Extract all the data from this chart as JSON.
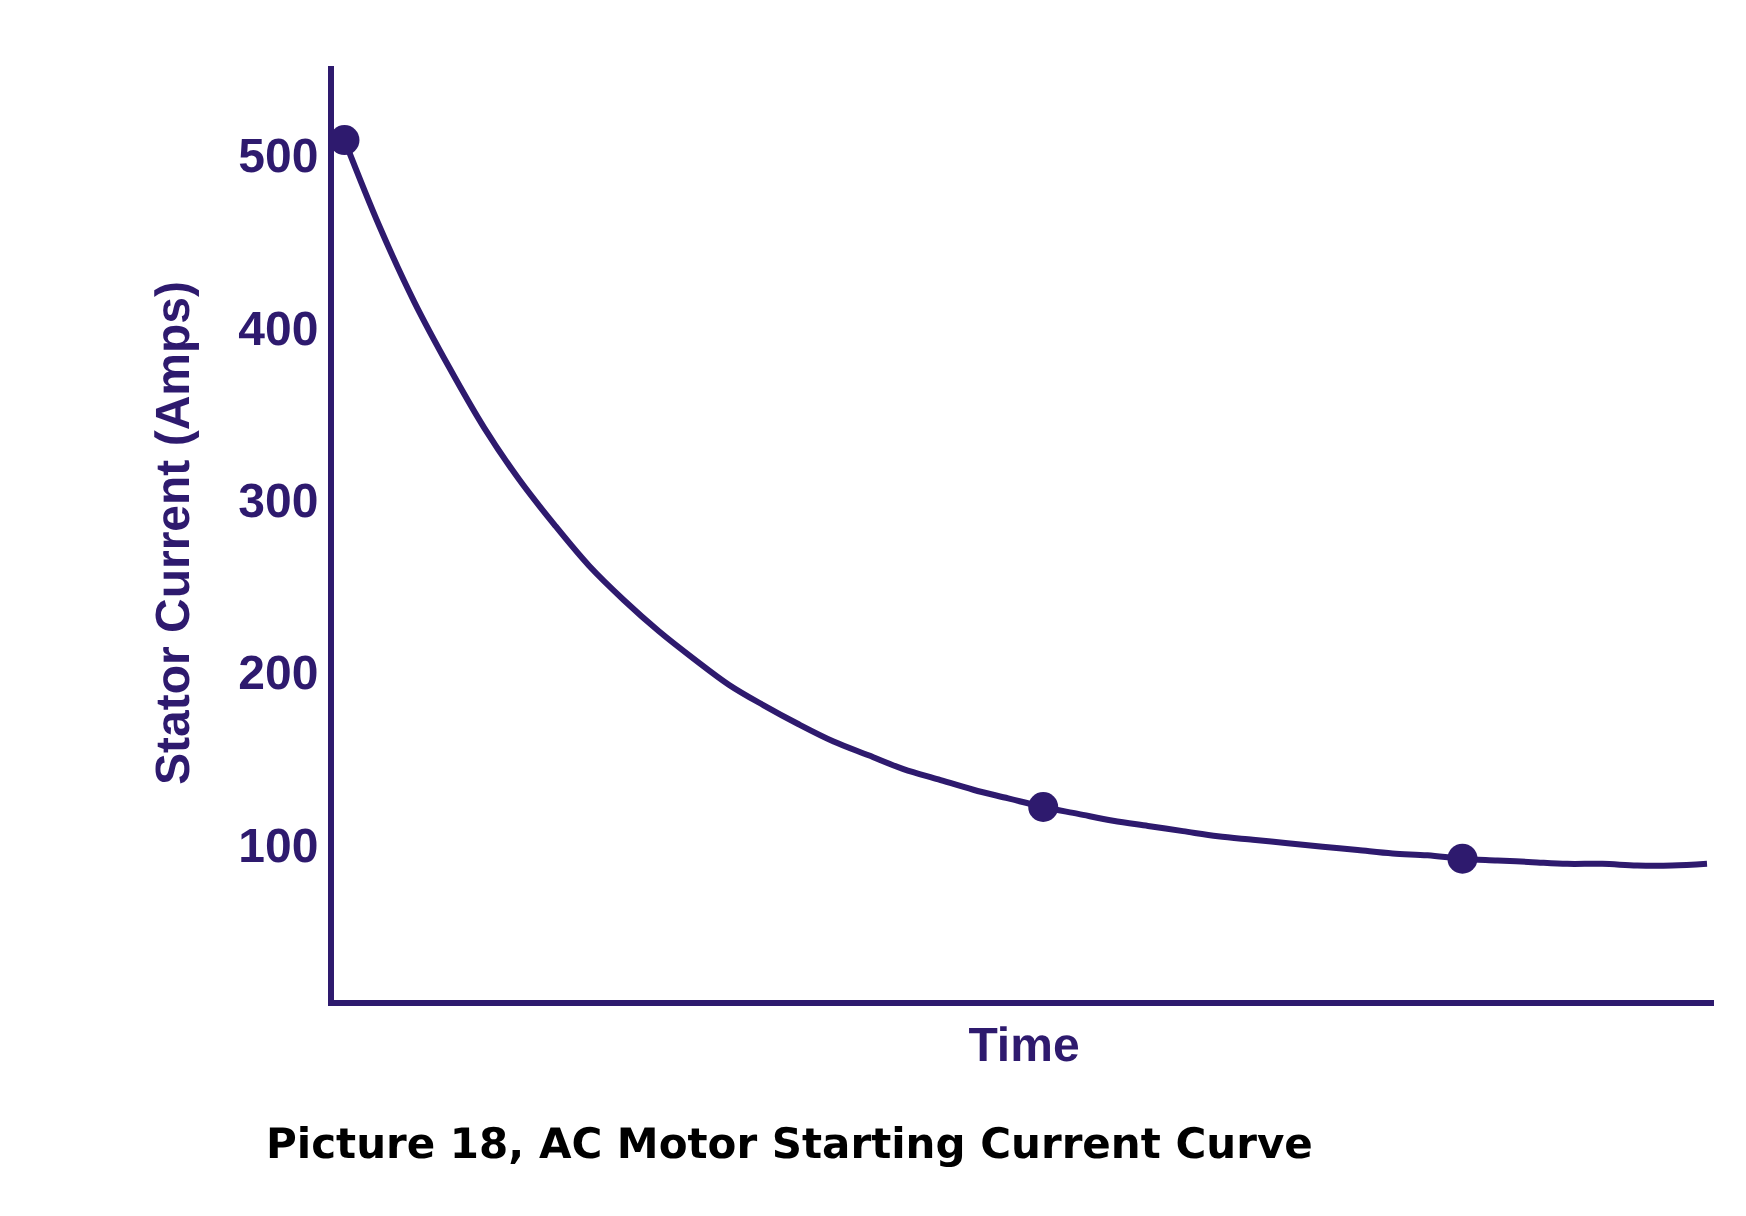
{
  "chart_data": {
    "type": "line",
    "xlabel": "Time",
    "ylabel": "Stator Current (Amps)",
    "annotations": [
      "Picture 18, AC Motor Starting Current Curve"
    ],
    "categories": [
      null,
      null,
      null,
      null,
      null,
      null,
      null,
      null,
      null,
      null,
      null,
      null,
      null,
      null,
      null,
      null,
      null,
      null,
      null,
      null,
      null,
      null,
      null,
      null,
      null,
      null,
      null,
      null,
      null,
      null,
      null,
      null,
      null,
      null,
      null,
      null,
      null,
      null,
      null,
      null
    ],
    "series": [
      {
        "color": "#2e1a6e",
        "values": [
          509,
          459,
          415,
          377,
          342,
          312,
          286,
          262,
          242,
          224,
          208,
          193,
          181,
          170,
          160,
          152,
          144,
          138,
          132,
          127,
          122,
          118,
          114,
          111,
          108,
          105,
          103,
          101,
          99,
          97,
          95,
          94,
          92,
          91,
          90,
          89,
          89,
          88,
          88,
          89
        ]
      },
      {
        "type": "scatter",
        "color": "#2e1a6e",
        "values": [
          509,
          null,
          null,
          null,
          null,
          null,
          null,
          null,
          null,
          null,
          null,
          null,
          null,
          null,
          null,
          null,
          null,
          null,
          null,
          null,
          122,
          null,
          null,
          null,
          null,
          null,
          null,
          null,
          null,
          null,
          null,
          null,
          92,
          null,
          null,
          null,
          null,
          null,
          null,
          null
        ]
      }
    ],
    "ylim": [
      10,
      552
    ],
    "yticks": [
      100,
      200,
      300,
      400,
      500
    ],
    "tick_labels": "y"
  }
}
